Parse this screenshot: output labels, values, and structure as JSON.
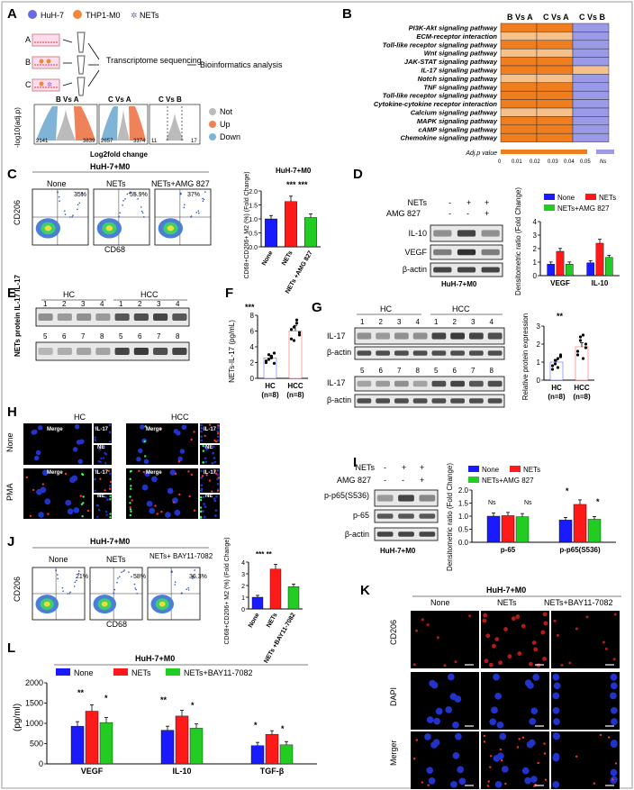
{
  "panel_letters": [
    "A",
    "B",
    "C",
    "D",
    "E",
    "F",
    "G",
    "H",
    "I",
    "J",
    "K",
    "L"
  ],
  "A": {
    "legend": [
      "HuH-7",
      "THP1-M0",
      "NETs"
    ],
    "groups": [
      "A",
      "B",
      "C"
    ],
    "step1": "Transcriptome sequencing",
    "step2": "Bioinformatics analysis",
    "volcano_titles": [
      "B Vs A",
      "C Vs A",
      "C Vs B"
    ],
    "volcano_counts": [
      [
        "2141",
        "3839"
      ],
      [
        "2657",
        "3374"
      ],
      [
        "11",
        "17"
      ]
    ],
    "ylabel": "-log10(adj.p)",
    "xlabel": "Log2fold change",
    "legend2": [
      "Not",
      "Up",
      "Down"
    ],
    "colors": {
      "not": "#bbbbbb",
      "up": "#f0825a",
      "down": "#7fb4d6"
    }
  },
  "B": {
    "columns": [
      "B Vs A",
      "C Vs A",
      "C Vs B"
    ],
    "rows": [
      "PI3K-Akt signaling pathway",
      "ECM-receptor interaction",
      "Toll-like receptor signaling pathway",
      "Wnt signaling pathway",
      "JAK-STAT signaling pathway",
      "IL-17 signaling pathway",
      "Notch signaling pathway",
      "TNF signaling pathway",
      "Toll-like receptor signaling pathway",
      "Cytokine-cytokine receptor interaction",
      "Calcium signaling pathway",
      "MAPK signaling pathway",
      "cAMP signaling pathway",
      "Chemokine signaling pathway"
    ],
    "cells": [
      [
        2,
        2,
        0
      ],
      [
        1,
        1,
        0
      ],
      [
        2,
        2,
        0
      ],
      [
        1,
        1,
        0
      ],
      [
        2,
        2,
        0
      ],
      [
        2,
        2,
        1
      ],
      [
        1,
        1,
        0
      ],
      [
        2,
        2,
        0
      ],
      [
        2,
        2,
        0
      ],
      [
        2,
        2,
        0
      ],
      [
        1,
        1,
        0
      ],
      [
        2,
        2,
        0
      ],
      [
        2,
        2,
        0
      ],
      [
        2,
        2,
        0
      ]
    ],
    "scale_label": "Adj.p value",
    "scale_ticks": [
      "0",
      "0.01",
      "0.02",
      "0.03",
      "0.04",
      "0.05"
    ],
    "ns_label": "Ns",
    "colors": {
      "strong": "#f07d1e",
      "light": "#f6c08a",
      "ns": "#9a9ae8"
    }
  },
  "C": {
    "title": "HuH-7+M0",
    "groups": [
      "None",
      "NETs",
      "NETs+AMG 827"
    ],
    "percents": [
      "35%",
      "55.9%",
      "37%"
    ],
    "xaxis": "CD68",
    "yaxis": "CD206",
    "bar_title": "HuH-7+M0",
    "ylabel": "CD68+CD206+ M2 (%) (Fold Change)",
    "yticks": [
      "0.0",
      "0.5",
      "1.0",
      "1.5",
      "2.0"
    ],
    "categories": [
      "None",
      "NETs",
      "NETs +AMG 827"
    ],
    "sig": "*** ***"
  },
  "D": {
    "rows": [
      "NETs",
      "AMG 827",
      "IL-10",
      "VEGF",
      "β-actin"
    ],
    "signs_nets": [
      "-",
      "+",
      "+"
    ],
    "signs_amg": [
      "-",
      "-",
      "+"
    ],
    "caption": "HuH-7+M0",
    "legend": [
      "None",
      "NETs",
      "NETs+AMG 827"
    ],
    "ylabel": "Densitometric ratio (Fold Change)",
    "yticks": [
      "0",
      "1",
      "2",
      "3",
      "4"
    ],
    "categories": [
      "VEGF",
      "IL-10"
    ],
    "sig": [
      "*",
      "*",
      "**",
      "*"
    ]
  },
  "E": {
    "groups": [
      "HC",
      "HCC"
    ],
    "lanes1": [
      "1",
      "2",
      "3",
      "4",
      "1",
      "2",
      "3",
      "4"
    ],
    "lanes2": [
      "5",
      "6",
      "7",
      "8",
      "5",
      "6",
      "7",
      "8"
    ],
    "side_label": "NETs protein IL-17 IL-17"
  },
  "F": {
    "sig": "***",
    "ylabel": "NETs-IL-17 (pg/mL)",
    "yticks": [
      "0",
      "2",
      "4",
      "6",
      "8"
    ],
    "categories": [
      "HC (n=8)",
      "HCC (n=8)"
    ]
  },
  "G": {
    "groups": [
      "HC",
      "HCC"
    ],
    "lanes1": [
      "1",
      "2",
      "3",
      "4",
      "1",
      "2",
      "3",
      "4"
    ],
    "lanes2": [
      "5",
      "6",
      "7",
      "8",
      "5",
      "6",
      "7",
      "8"
    ],
    "rows": [
      "IL-17",
      "β-actin",
      "IL-17",
      "β-actin"
    ],
    "sig": "**",
    "ylabel": "Relative protein expression",
    "yticks": [
      "0",
      "1",
      "2",
      "3"
    ],
    "categories": [
      "HC (n=8)",
      "HCC (n=8)"
    ]
  },
  "H": {
    "cols": [
      "HC",
      "HCC"
    ],
    "rows": [
      "None",
      "PMA"
    ],
    "tags": [
      "Merge",
      "IL-17",
      "NE"
    ]
  },
  "I": {
    "rows": [
      "NETs",
      "AMG 827",
      "p-p65(S536)",
      "p-65",
      "β-actin"
    ],
    "signs_nets": [
      "-",
      "+",
      "+"
    ],
    "signs_amg": [
      "-",
      "-",
      "+"
    ],
    "caption": "HuH-7+M0",
    "legend": [
      "None",
      "NETs",
      "NETs+AMG 827"
    ],
    "ylabel": "Densitometric ratio (Fold Change)",
    "yticks": [
      "0.0",
      "0.5",
      "1.0",
      "1.5",
      "2.0"
    ],
    "categories": [
      "p-65",
      "p-p65(S536)"
    ],
    "sig": [
      "Ns",
      "Ns",
      "*",
      "*"
    ]
  },
  "J": {
    "title": "HuH-7+M0",
    "groups": [
      "None",
      "NETs",
      "NETs+ BAY11-7082"
    ],
    "percents": [
      "21%",
      "58%",
      "36.3%"
    ],
    "xaxis": "CD68",
    "yaxis": "CD206",
    "ylabel": "CD68+CD206+ M2 (%) (Fold Change)",
    "yticks": [
      "0",
      "1",
      "2",
      "3",
      "4"
    ],
    "categories": [
      "None",
      "NETs",
      "NETs +BAY11-7082"
    ],
    "sig": "*** **"
  },
  "K": {
    "title": "HuH-7+M0",
    "cols": [
      "None",
      "NETs",
      "NETs+BAY11-7082"
    ],
    "rows": [
      "CD206",
      "DAPI",
      "Merger"
    ]
  },
  "L": {
    "title": "HuH-7+M0",
    "legend": [
      "None",
      "NETs",
      "NETs+BAY11-7082"
    ],
    "ylabel": "(pg/ml)",
    "yticks": [
      "0",
      "500",
      "1000",
      "1500",
      "2000"
    ],
    "categories": [
      "VEGF",
      "IL-10",
      "TGF-β"
    ],
    "sig": [
      "**",
      "*",
      "**",
      "*",
      "*",
      "*"
    ]
  },
  "colors": {
    "none": "#1a1aff",
    "nets": "#ff1a1a",
    "treat": "#22cc22",
    "blot_band": "#222222"
  },
  "chart_data": [
    {
      "panel": "C",
      "type": "bar",
      "categories": [
        "None",
        "NETs",
        "NETs+AMG 827"
      ],
      "values": [
        1.0,
        1.62,
        1.05
      ],
      "ylabel": "CD68+CD206+ M2 (%) (Fold Change)",
      "ylim": [
        0,
        2.0
      ]
    },
    {
      "panel": "D",
      "type": "bar",
      "categories": [
        "VEGF",
        "IL-10"
      ],
      "series": [
        {
          "name": "None",
          "values": [
            0.85,
            0.95
          ]
        },
        {
          "name": "NETs",
          "values": [
            1.8,
            2.4
          ]
        },
        {
          "name": "NETs+AMG 827",
          "values": [
            0.85,
            1.35
          ]
        }
      ],
      "ylabel": "Densitometric ratio (Fold Change)",
      "ylim": [
        0,
        4
      ]
    },
    {
      "panel": "F",
      "type": "bar",
      "categories": [
        "HC (n=8)",
        "HCC (n=8)"
      ],
      "values": [
        2.6,
        6.0
      ],
      "ylabel": "NETs-IL-17 (pg/mL)",
      "ylim": [
        0,
        8
      ]
    },
    {
      "panel": "G",
      "type": "bar",
      "categories": [
        "HC (n=8)",
        "HCC (n=8)"
      ],
      "values": [
        1.0,
        1.85
      ],
      "ylabel": "Relative protein expression",
      "ylim": [
        0,
        3
      ]
    },
    {
      "panel": "I",
      "type": "bar",
      "categories": [
        "p-65",
        "p-p65(S536)"
      ],
      "series": [
        {
          "name": "None",
          "values": [
            1.0,
            0.85
          ]
        },
        {
          "name": "NETs",
          "values": [
            1.02,
            1.45
          ]
        },
        {
          "name": "NETs+AMG 827",
          "values": [
            0.98,
            0.88
          ]
        }
      ],
      "ylabel": "Densitometric ratio (Fold Change)",
      "ylim": [
        0,
        2.0
      ]
    },
    {
      "panel": "J",
      "type": "bar",
      "categories": [
        "None",
        "NETs",
        "NETs+BAY11-7082"
      ],
      "values": [
        1.0,
        3.4,
        1.9
      ],
      "ylabel": "CD68+CD206+ M2 (%) (Fold Change)",
      "ylim": [
        0,
        4
      ]
    },
    {
      "panel": "L",
      "type": "bar",
      "categories": [
        "VEGF",
        "IL-10",
        "TGF-β"
      ],
      "series": [
        {
          "name": "None",
          "values": [
            930,
            830,
            450
          ]
        },
        {
          "name": "NETs",
          "values": [
            1300,
            1180,
            730
          ]
        },
        {
          "name": "NETs+BAY11-7082",
          "values": [
            1020,
            880,
            470
          ]
        }
      ],
      "ylabel": "(pg/ml)",
      "ylim": [
        0,
        2000
      ]
    }
  ]
}
